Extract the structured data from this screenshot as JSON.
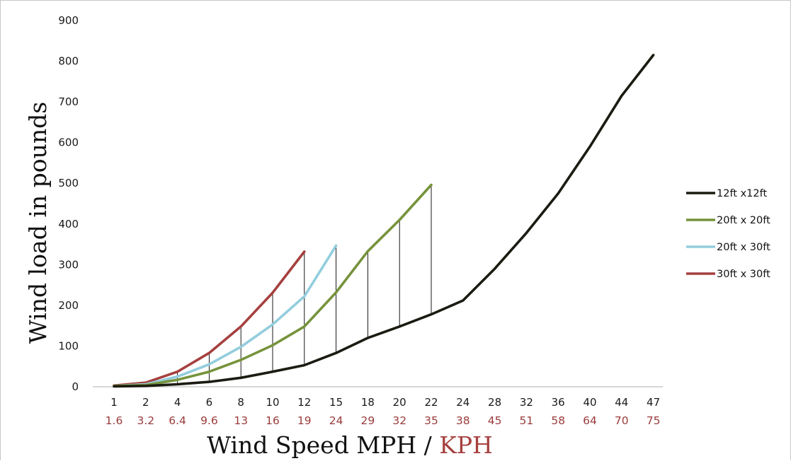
{
  "chart_data": {
    "type": "line",
    "title": "",
    "ylabel": "Wind load in pounds",
    "xlabel": "Wind Speed MPH / ",
    "xlabel_secondary": "KPH",
    "ylim": [
      0,
      900
    ],
    "yticks": [
      "0",
      "100",
      "200",
      "300",
      "400",
      "500",
      "600",
      "700",
      "800",
      "900"
    ],
    "categories": [
      "1",
      "2",
      "4",
      "6",
      "8",
      "10",
      "12",
      "15",
      "18",
      "20",
      "22",
      "24",
      "28",
      "32",
      "36",
      "40",
      "44",
      "47"
    ],
    "categories_kph": [
      "1.6",
      "3.2",
      "6.4",
      "9.6",
      "13",
      "16",
      "19",
      "24",
      "29",
      "32",
      "35",
      "38",
      "45",
      "51",
      "58",
      "64",
      "70",
      "75"
    ],
    "grid": false,
    "legend_position": "right",
    "series": [
      {
        "name": "12ft x12ft",
        "color": "#1b1b12",
        "values": [
          1,
          2,
          6,
          12,
          22,
          37,
          53,
          83,
          120,
          148,
          178,
          212,
          290,
          378,
          475,
          590,
          715,
          815
        ]
      },
      {
        "name": "20ft x 20ft",
        "color": "#76933c",
        "values": [
          2,
          4,
          17,
          37,
          66,
          102,
          148,
          232,
          333,
          410,
          496,
          null,
          null,
          null,
          null,
          null,
          null,
          null
        ]
      },
      {
        "name": "20ft x 30ft",
        "color": "#93cddd",
        "values": [
          2,
          6,
          25,
          55,
          98,
          153,
          222,
          347,
          null,
          null,
          null,
          null,
          null,
          null,
          null,
          null,
          null,
          null
        ]
      },
      {
        "name": "30ft x 30ft",
        "color": "#a5403f",
        "values": [
          3,
          10,
          37,
          83,
          148,
          231,
          332,
          null,
          null,
          null,
          null,
          null,
          null,
          null,
          null,
          null,
          null,
          null
        ]
      }
    ],
    "drop_lines": [
      {
        "category_index": 2,
        "from": 6,
        "to": 37
      },
      {
        "category_index": 3,
        "from": 12,
        "to": 83
      },
      {
        "category_index": 4,
        "from": 22,
        "to": 148
      },
      {
        "category_index": 5,
        "from": 37,
        "to": 231
      },
      {
        "category_index": 6,
        "from": 53,
        "to": 332
      },
      {
        "category_index": 7,
        "from": 83,
        "to": 347
      },
      {
        "category_index": 8,
        "from": 120,
        "to": 333
      },
      {
        "category_index": 9,
        "from": 148,
        "to": 410
      },
      {
        "category_index": 10,
        "from": 178,
        "to": 496
      }
    ]
  }
}
